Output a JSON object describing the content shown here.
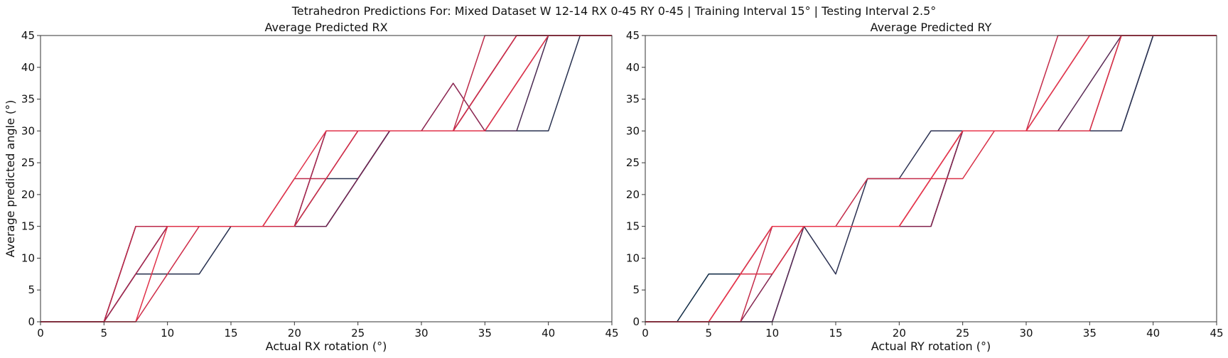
{
  "suptitle": "Tetrahedron Predictions For: Mixed Dataset W 12-14 RX 0-45 RY 0-45 | Training Interval 15° | Testing Interval 2.5°",
  "chart_data": [
    {
      "type": "line",
      "title": "Average Predicted RX",
      "xlabel": "Actual RX rotation (°)",
      "ylabel": "Average predicted angle (°)",
      "xlim": [
        0,
        45
      ],
      "ylim": [
        0,
        45
      ],
      "xticks": [
        "0",
        "5",
        "10",
        "15",
        "20",
        "25",
        "30",
        "35",
        "40",
        "45"
      ],
      "yticks": [
        "0",
        "5",
        "10",
        "15",
        "20",
        "25",
        "30",
        "35",
        "40",
        "45"
      ],
      "x": [
        0,
        2.5,
        5,
        7.5,
        10,
        12.5,
        15,
        17.5,
        20,
        22.5,
        25,
        27.5,
        30,
        32.5,
        35,
        37.5,
        40,
        42.5,
        45
      ],
      "series": [
        {
          "color": "#27304f",
          "values": [
            0,
            0,
            0,
            7.5,
            7.5,
            7.5,
            15,
            15,
            15,
            22.5,
            22.5,
            30,
            30,
            30,
            30,
            30,
            30,
            45,
            45
          ]
        },
        {
          "color": "#4a2a52",
          "values": [
            0,
            0,
            0,
            15,
            15,
            15,
            15,
            15,
            15,
            15,
            22.5,
            30,
            30,
            30,
            30,
            30,
            45,
            45,
            45
          ]
        },
        {
          "color": "#6e2450",
          "values": [
            0,
            0,
            0,
            7.5,
            15,
            15,
            15,
            15,
            15,
            15,
            22.5,
            30,
            30,
            30,
            37.5,
            45,
            45,
            45,
            45
          ]
        },
        {
          "color": "#8a2450",
          "values": [
            0,
            0,
            0,
            15,
            15,
            15,
            15,
            15,
            15,
            30,
            30,
            30,
            30,
            37.5,
            30,
            37.5,
            45,
            45,
            45
          ]
        },
        {
          "color": "#a4284f",
          "values": [
            0,
            0,
            0,
            7.5,
            15,
            15,
            15,
            15,
            15,
            30,
            30,
            30,
            30,
            30,
            37.5,
            45,
            45,
            45,
            45
          ]
        },
        {
          "color": "#bc2a4a",
          "values": [
            0,
            0,
            0,
            15,
            15,
            15,
            15,
            15,
            22.5,
            22.5,
            30,
            30,
            30,
            30,
            45,
            45,
            45,
            45,
            45
          ]
        },
        {
          "color": "#cf2c48",
          "values": [
            0,
            0,
            0,
            0,
            7.5,
            15,
            15,
            15,
            15,
            22.5,
            30,
            30,
            30,
            30,
            37.5,
            45,
            45,
            45,
            45
          ]
        },
        {
          "color": "#e0324a",
          "values": [
            0,
            0,
            0,
            0,
            15,
            15,
            15,
            15,
            22.5,
            30,
            30,
            30,
            30,
            30,
            30,
            37.5,
            45,
            45,
            45
          ]
        }
      ]
    },
    {
      "type": "line",
      "title": "Average Predicted RY",
      "xlabel": "Actual RY rotation (°)",
      "ylabel": "",
      "xlim": [
        0,
        45
      ],
      "ylim": [
        0,
        45
      ],
      "xticks": [
        "0",
        "5",
        "10",
        "15",
        "20",
        "25",
        "30",
        "35",
        "40",
        "45"
      ],
      "yticks": [
        "0",
        "5",
        "10",
        "15",
        "20",
        "25",
        "30",
        "35",
        "40",
        "45"
      ],
      "x": [
        0,
        2.5,
        5,
        7.5,
        10,
        12.5,
        15,
        17.5,
        20,
        22.5,
        25,
        27.5,
        30,
        32.5,
        35,
        37.5,
        40,
        42.5,
        45
      ],
      "series": [
        {
          "color": "#0f2a44",
          "values": [
            0,
            0,
            7.5,
            7.5,
            15,
            15,
            15,
            15,
            15,
            15,
            30,
            30,
            30,
            30,
            30,
            30,
            45,
            45,
            45
          ]
        },
        {
          "color": "#2c3152",
          "values": [
            0,
            0,
            0,
            0,
            0,
            15,
            7.5,
            22.5,
            22.5,
            30,
            30,
            30,
            30,
            30,
            30,
            30,
            45,
            45,
            45
          ]
        },
        {
          "color": "#5a2a55",
          "values": [
            0,
            0,
            0,
            0,
            0,
            15,
            15,
            15,
            15,
            15,
            30,
            30,
            30,
            30,
            37.5,
            45,
            45,
            45,
            45
          ]
        },
        {
          "color": "#852650",
          "values": [
            0,
            0,
            0,
            0,
            7.5,
            15,
            15,
            15,
            15,
            15,
            30,
            30,
            30,
            37.5,
            45,
            45,
            45,
            45,
            45
          ]
        },
        {
          "color": "#a8294f",
          "values": [
            0,
            0,
            0,
            7.5,
            15,
            15,
            15,
            15,
            15,
            22.5,
            30,
            30,
            30,
            30,
            30,
            45,
            45,
            45,
            45
          ]
        },
        {
          "color": "#c42c4a",
          "values": [
            0,
            0,
            0,
            0,
            15,
            15,
            15,
            22.5,
            22.5,
            22.5,
            30,
            30,
            30,
            45,
            45,
            45,
            45,
            45,
            45
          ]
        },
        {
          "color": "#d83047",
          "values": [
            0,
            0,
            0,
            7.5,
            7.5,
            15,
            15,
            15,
            15,
            22.5,
            22.5,
            30,
            30,
            30,
            30,
            45,
            45,
            45,
            45
          ]
        },
        {
          "color": "#e8364c",
          "values": [
            0,
            0,
            0,
            7.5,
            15,
            15,
            15,
            15,
            15,
            22.5,
            30,
            30,
            30,
            37.5,
            45,
            45,
            45,
            45,
            45
          ]
        }
      ]
    }
  ]
}
